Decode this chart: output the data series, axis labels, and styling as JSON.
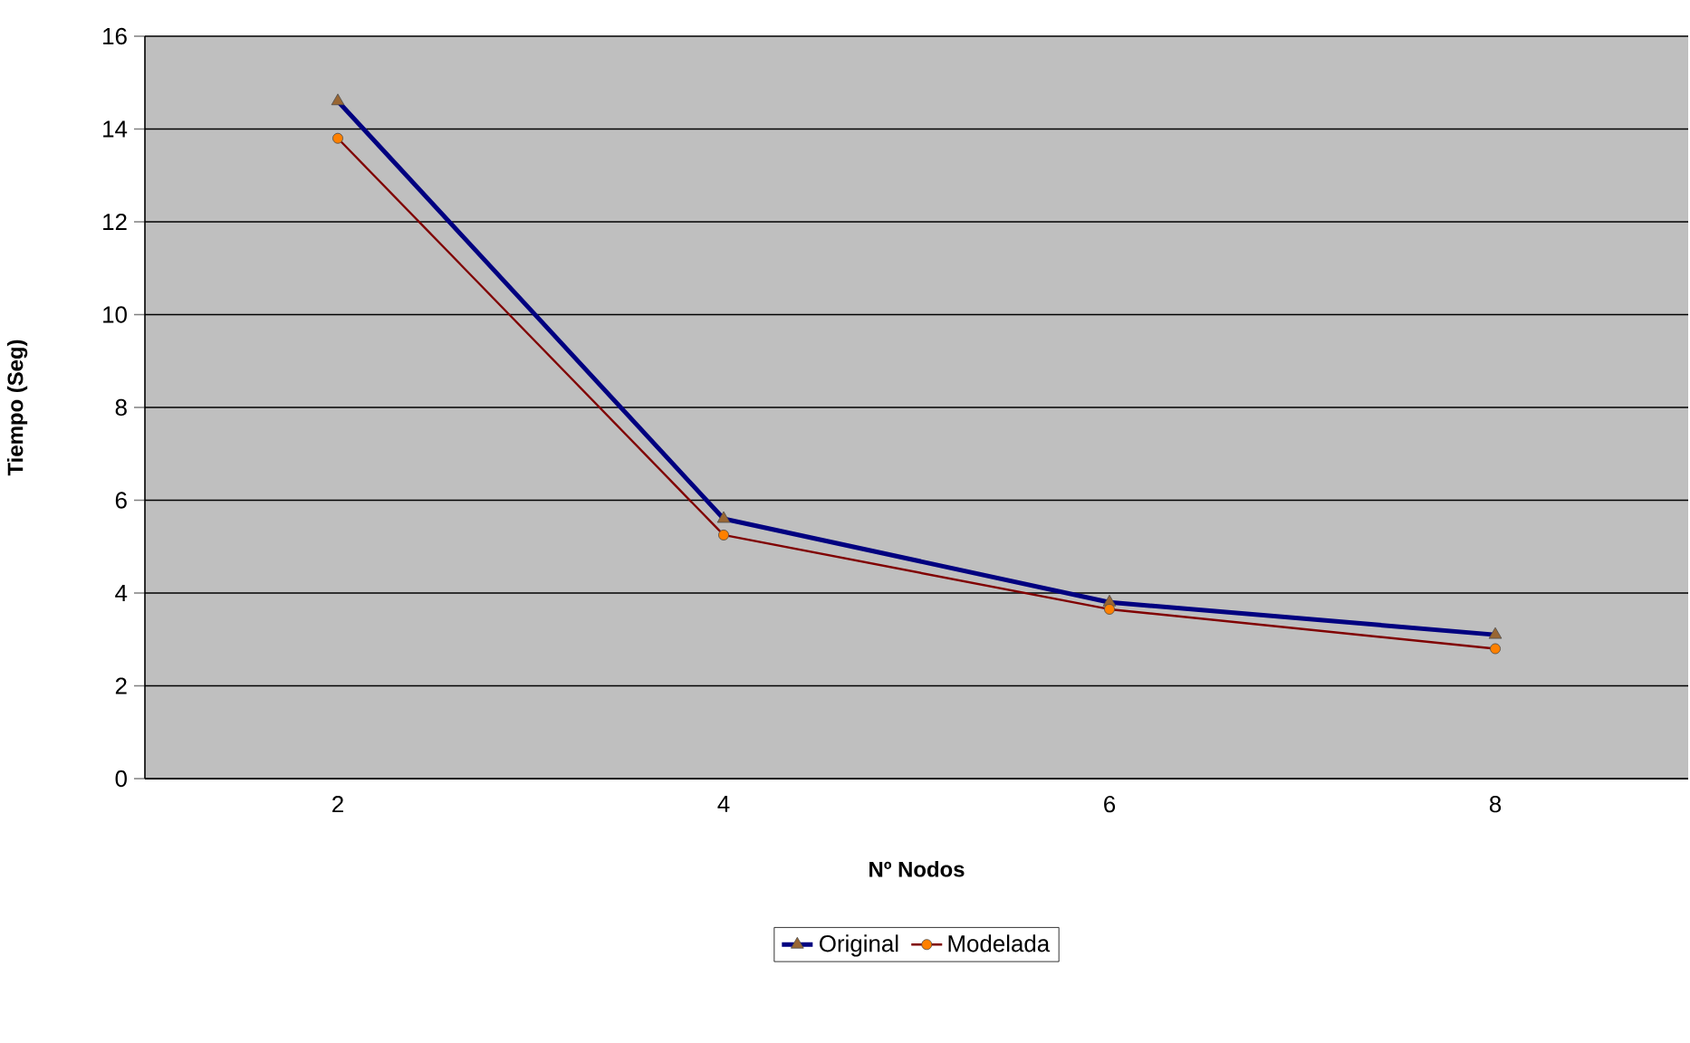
{
  "chart_data": {
    "type": "line",
    "xlabel": "Nº  Nodos",
    "ylabel": "Tiempo (Seg)",
    "categories": [
      "2",
      "4",
      "6",
      "8"
    ],
    "series": [
      {
        "name": "Original",
        "color": "#000080",
        "marker": "triangle",
        "values": [
          14.6,
          5.6,
          3.8,
          3.1
        ]
      },
      {
        "name": "Modelada",
        "color": "#800000",
        "marker": "circle",
        "values": [
          13.8,
          5.25,
          3.65,
          2.8
        ]
      }
    ],
    "ylim": [
      0,
      16
    ],
    "yticks": [
      0,
      2,
      4,
      6,
      8,
      10,
      12,
      14,
      16
    ],
    "grid": "y",
    "legend": "bottom"
  }
}
